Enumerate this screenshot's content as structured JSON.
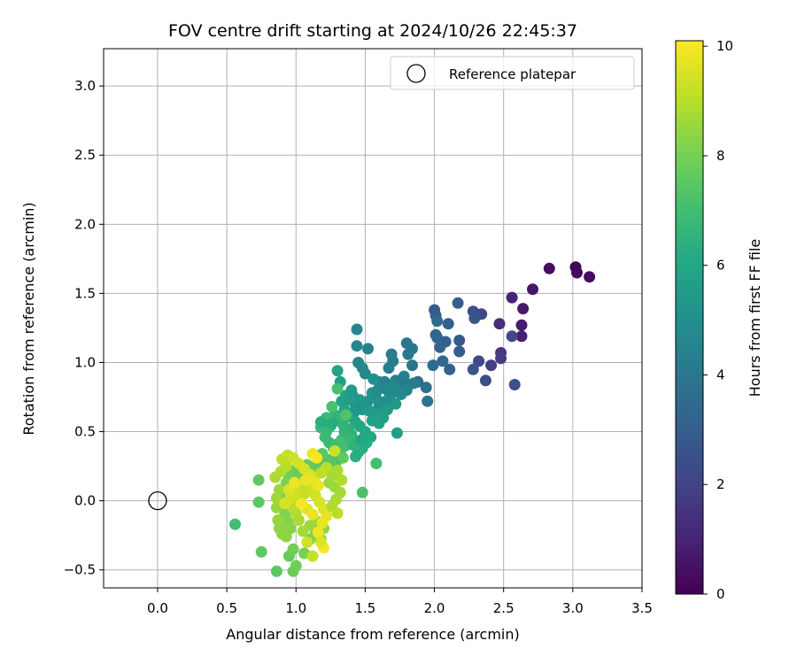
{
  "chart_data": {
    "type": "scatter",
    "title": "FOV centre drift starting at 2024/10/26 22:45:37",
    "xlabel": "Angular distance from reference (arcmin)",
    "ylabel": "Rotation from reference (arcmin)",
    "xlim": [
      -0.39,
      3.5
    ],
    "ylim": [
      -0.63,
      3.27
    ],
    "xticks": [
      0.0,
      0.5,
      1.0,
      1.5,
      2.0,
      2.5,
      3.0,
      3.5
    ],
    "yticks": [
      -0.5,
      0.0,
      0.5,
      1.0,
      1.5,
      2.0,
      2.5,
      3.0
    ],
    "xtick_labels": [
      "0.0",
      "0.5",
      "1.0",
      "1.5",
      "2.0",
      "2.5",
      "3.0",
      "3.5"
    ],
    "ytick_labels": [
      "−0.5",
      "0.0",
      "0.5",
      "1.0",
      "1.5",
      "2.0",
      "2.5",
      "3.0"
    ],
    "grid": true,
    "legend": {
      "position": "upper-right",
      "entries": [
        "Reference platepar"
      ]
    },
    "reference_point": {
      "x": 0.0,
      "y": 0.0,
      "label": "Reference platepar",
      "marker": "open-circle"
    },
    "colorbar": {
      "label": "Hours from first FF file",
      "range": [
        0,
        10.1
      ],
      "ticks": [
        0,
        2,
        4,
        6,
        8,
        10
      ],
      "tick_labels": [
        "0",
        "2",
        "4",
        "6",
        "8",
        "10"
      ],
      "colormap": "viridis"
    },
    "series": [
      {
        "points": [
          [
            3.02,
            1.69,
            0.1
          ],
          [
            3.03,
            1.65,
            0.2
          ],
          [
            3.12,
            1.62,
            0.3
          ],
          [
            2.83,
            1.68,
            0.4
          ],
          [
            2.71,
            1.53,
            0.6
          ],
          [
            2.64,
            1.39,
            0.7
          ],
          [
            2.63,
            1.27,
            0.8
          ],
          [
            2.63,
            1.19,
            0.9
          ],
          [
            2.56,
            1.47,
            1.0
          ],
          [
            2.47,
            1.28,
            1.3
          ],
          [
            2.56,
            1.19,
            2.2
          ],
          [
            2.48,
            1.07,
            1.6
          ],
          [
            2.48,
            1.03,
            1.8
          ],
          [
            2.41,
            0.98,
            1.9
          ],
          [
            2.58,
            0.84,
            2.5
          ],
          [
            2.37,
            0.87,
            2.4
          ],
          [
            2.32,
            1.01,
            2.3
          ],
          [
            2.28,
            0.95,
            2.6
          ],
          [
            2.28,
            1.37,
            2.5
          ],
          [
            2.34,
            1.35,
            2.3
          ],
          [
            2.29,
            1.32,
            2.7
          ],
          [
            2.18,
            1.16,
            2.8
          ],
          [
            2.18,
            1.08,
            2.9
          ],
          [
            2.17,
            1.43,
            3.0
          ],
          [
            2.1,
            1.28,
            3.1
          ],
          [
            2.08,
            1.15,
            3.1
          ],
          [
            2.11,
            0.95,
            3.2
          ],
          [
            2.04,
            1.11,
            3.2
          ],
          [
            2.02,
            1.18,
            3.3
          ],
          [
            2.01,
            1.2,
            3.3
          ],
          [
            2.0,
            1.38,
            2.8
          ],
          [
            2.01,
            1.34,
            3.0
          ],
          [
            2.06,
            1.01,
            3.4
          ],
          [
            1.99,
            0.98,
            3.5
          ],
          [
            2.02,
            1.3,
            3.5
          ],
          [
            1.88,
            0.86,
            3.6
          ],
          [
            1.94,
            0.82,
            3.7
          ],
          [
            1.95,
            0.72,
            3.8
          ],
          [
            1.84,
            0.98,
            3.9
          ],
          [
            1.8,
            1.14,
            3.9
          ],
          [
            1.84,
            1.1,
            4.0
          ],
          [
            1.79,
            0.85,
            4.0
          ],
          [
            1.81,
            1.06,
            4.1
          ],
          [
            1.75,
            0.82,
            4.1
          ],
          [
            1.69,
            1.06,
            4.2
          ],
          [
            1.7,
            1.01,
            4.2
          ],
          [
            1.67,
            0.96,
            4.3
          ],
          [
            1.72,
            0.87,
            4.3
          ],
          [
            1.64,
            0.86,
            4.4
          ],
          [
            1.62,
            0.83,
            4.4
          ],
          [
            1.6,
            0.86,
            4.5
          ],
          [
            1.52,
            1.1,
            4.4
          ],
          [
            1.44,
            1.24,
            4.5
          ],
          [
            1.44,
            1.12,
            4.6
          ],
          [
            1.45,
            1.0,
            4.6
          ],
          [
            1.48,
            0.96,
            4.7
          ],
          [
            1.5,
            0.92,
            4.7
          ],
          [
            1.7,
            0.83,
            4.8
          ],
          [
            1.74,
            0.79,
            4.8
          ],
          [
            1.68,
            0.75,
            4.9
          ],
          [
            1.65,
            0.72,
            4.9
          ],
          [
            1.62,
            0.7,
            5.0
          ],
          [
            1.6,
            0.68,
            5.0
          ],
          [
            1.58,
            0.74,
            5.1
          ],
          [
            1.55,
            0.78,
            5.1
          ],
          [
            1.52,
            0.72,
            5.2
          ],
          [
            1.5,
            0.7,
            5.2
          ],
          [
            1.48,
            0.66,
            5.3
          ],
          [
            1.45,
            0.68,
            5.3
          ],
          [
            1.42,
            0.64,
            5.4
          ],
          [
            1.72,
            0.7,
            5.4
          ],
          [
            1.66,
            0.66,
            5.5
          ],
          [
            1.63,
            0.64,
            5.5
          ],
          [
            1.73,
            0.49,
            5.6
          ],
          [
            1.4,
            0.8,
            5.6
          ],
          [
            1.36,
            0.76,
            5.7
          ],
          [
            1.32,
            0.86,
            5.7
          ],
          [
            1.3,
            0.94,
            5.8
          ],
          [
            1.33,
            0.72,
            5.8
          ],
          [
            1.35,
            0.66,
            5.9
          ],
          [
            1.38,
            0.61,
            5.9
          ],
          [
            1.43,
            0.57,
            6.0
          ],
          [
            1.46,
            0.54,
            6.0
          ],
          [
            1.5,
            0.5,
            6.1
          ],
          [
            1.54,
            0.46,
            6.1
          ],
          [
            1.51,
            0.42,
            6.2
          ],
          [
            1.48,
            0.38,
            6.2
          ],
          [
            1.45,
            0.35,
            6.3
          ],
          [
            1.43,
            0.32,
            6.3
          ],
          [
            1.4,
            0.48,
            6.4
          ],
          [
            1.38,
            0.52,
            6.4
          ],
          [
            1.34,
            0.55,
            6.5
          ],
          [
            1.31,
            0.58,
            6.5
          ],
          [
            1.28,
            0.62,
            6.6
          ],
          [
            1.25,
            0.54,
            6.6
          ],
          [
            1.22,
            0.5,
            6.7
          ],
          [
            1.18,
            0.53,
            6.7
          ],
          [
            1.21,
            0.46,
            6.8
          ],
          [
            1.24,
            0.42,
            6.8
          ],
          [
            1.27,
            0.38,
            6.9
          ],
          [
            1.3,
            0.41,
            6.9
          ],
          [
            1.33,
            0.44,
            7.0
          ],
          [
            1.36,
            0.4,
            7.0
          ],
          [
            1.32,
            0.35,
            7.1
          ],
          [
            1.28,
            0.32,
            7.1
          ],
          [
            1.58,
            0.27,
            7.0
          ],
          [
            1.48,
            0.06,
            7.2
          ],
          [
            1.26,
            0.68,
            7.2
          ],
          [
            1.3,
            0.81,
            7.1
          ],
          [
            1.36,
            0.62,
            7.3
          ],
          [
            1.29,
            0.28,
            7.3
          ],
          [
            1.25,
            0.25,
            7.4
          ],
          [
            1.22,
            0.3,
            7.4
          ],
          [
            1.19,
            0.34,
            7.5
          ],
          [
            1.16,
            0.28,
            7.5
          ],
          [
            1.14,
            0.24,
            7.6
          ],
          [
            1.11,
            0.2,
            7.6
          ],
          [
            1.08,
            0.26,
            7.7
          ],
          [
            1.05,
            0.22,
            7.7
          ],
          [
            1.02,
            0.17,
            7.8
          ],
          [
            0.98,
            0.22,
            7.8
          ],
          [
            0.95,
            0.18,
            7.9
          ],
          [
            0.93,
            0.13,
            8.0
          ],
          [
            0.91,
            0.08,
            8.0
          ],
          [
            0.89,
            0.03,
            8.1
          ],
          [
            0.9,
            -0.05,
            8.1
          ],
          [
            0.92,
            -0.1,
            8.2
          ],
          [
            0.94,
            -0.15,
            8.2
          ],
          [
            0.96,
            -0.2,
            8.3
          ],
          [
            0.93,
            -0.26,
            8.3
          ],
          [
            0.9,
            -0.24,
            8.4
          ],
          [
            0.88,
            -0.2,
            8.4
          ],
          [
            0.87,
            -0.14,
            8.5
          ],
          [
            0.86,
            -0.05,
            8.5
          ],
          [
            0.86,
            0.02,
            8.6
          ],
          [
            0.88,
            0.08,
            8.6
          ],
          [
            0.56,
            -0.17,
            7.0
          ],
          [
            0.73,
            -0.01,
            7.5
          ],
          [
            0.73,
            0.15,
            7.6
          ],
          [
            0.75,
            -0.37,
            7.6
          ],
          [
            0.86,
            -0.51,
            7.5
          ],
          [
            0.98,
            -0.51,
            7.8
          ],
          [
            1.0,
            -0.47,
            7.9
          ],
          [
            0.95,
            -0.4,
            7.7
          ],
          [
            0.98,
            -0.35,
            7.9
          ],
          [
            1.06,
            -0.38,
            8.0
          ],
          [
            1.1,
            -0.28,
            8.1
          ],
          [
            1.14,
            -0.24,
            8.2
          ],
          [
            1.18,
            -0.28,
            8.3
          ],
          [
            1.2,
            -0.2,
            8.4
          ],
          [
            1.15,
            -0.15,
            8.5
          ],
          [
            1.1,
            -0.18,
            8.6
          ],
          [
            1.05,
            -0.22,
            8.7
          ],
          [
            1.02,
            -0.14,
            8.8
          ],
          [
            1.0,
            -0.09,
            8.9
          ],
          [
            0.98,
            -0.04,
            9.0
          ],
          [
            1.02,
            0.01,
            9.1
          ],
          [
            1.06,
            0.05,
            9.2
          ],
          [
            1.1,
            0.09,
            9.3
          ],
          [
            1.14,
            0.04,
            9.4
          ],
          [
            1.17,
            -0.01,
            9.5
          ],
          [
            1.2,
            -0.06,
            9.6
          ],
          [
            1.22,
            -0.11,
            9.7
          ],
          [
            1.19,
            -0.16,
            9.8
          ],
          [
            1.16,
            -0.23,
            9.9
          ],
          [
            1.2,
            -0.34,
            10.0
          ],
          [
            1.18,
            -0.3,
            9.6
          ],
          [
            1.08,
            -0.3,
            9.4
          ],
          [
            1.12,
            -0.4,
            9.2
          ],
          [
            0.85,
            0.17,
            8.8
          ],
          [
            0.89,
            0.21,
            8.9
          ],
          [
            0.93,
            0.25,
            9.0
          ],
          [
            0.9,
            0.3,
            9.1
          ],
          [
            0.94,
            0.33,
            9.2
          ],
          [
            0.98,
            0.31,
            9.3
          ],
          [
            1.02,
            0.27,
            9.4
          ],
          [
            1.06,
            0.23,
            9.5
          ],
          [
            1.1,
            0.19,
            9.6
          ],
          [
            1.13,
            0.15,
            9.7
          ],
          [
            1.16,
            0.11,
            9.8
          ],
          [
            1.12,
            0.34,
            9.9
          ],
          [
            1.15,
            0.31,
            10.0
          ],
          [
            1.28,
            0.36,
            9.3
          ],
          [
            1.24,
            0.13,
            8.5
          ],
          [
            1.28,
            0.1,
            8.6
          ],
          [
            1.32,
            0.06,
            8.7
          ],
          [
            1.29,
            0.01,
            8.8
          ],
          [
            1.26,
            -0.04,
            8.9
          ],
          [
            1.3,
            -0.09,
            9.0
          ],
          [
            1.26,
            0.18,
            8.7
          ],
          [
            1.3,
            0.22,
            8.8
          ],
          [
            1.33,
            0.15,
            8.9
          ],
          [
            1.22,
            0.24,
            9.0
          ],
          [
            1.18,
            0.2,
            9.1
          ],
          [
            1.04,
            0.1,
            9.2
          ],
          [
            1.0,
            0.06,
            9.3
          ],
          [
            0.96,
            0.02,
            9.4
          ],
          [
            0.92,
            -0.02,
            9.5
          ],
          [
            0.95,
            0.08,
            9.6
          ],
          [
            1.08,
            -0.06,
            9.7
          ],
          [
            1.12,
            -0.1,
            9.8
          ],
          [
            1.04,
            -0.02,
            10.0
          ],
          [
            0.99,
            0.13,
            9.9
          ],
          [
            1.07,
            0.15,
            9.8
          ],
          [
            1.34,
            0.31,
            7.6
          ],
          [
            1.22,
            0.6,
            6.9
          ],
          [
            1.18,
            0.57,
            6.3
          ],
          [
            1.26,
            0.56,
            6.2
          ],
          [
            1.35,
            0.5,
            6.6
          ],
          [
            1.39,
            0.45,
            6.7
          ],
          [
            1.42,
            0.4,
            6.5
          ],
          [
            1.47,
            0.44,
            6.0
          ],
          [
            1.55,
            0.58,
            5.9
          ],
          [
            1.57,
            0.62,
            5.7
          ],
          [
            1.6,
            0.56,
            5.8
          ],
          [
            1.63,
            0.6,
            5.6
          ],
          [
            1.53,
            0.65,
            5.5
          ],
          [
            1.46,
            0.73,
            5.4
          ],
          [
            1.41,
            0.76,
            5.3
          ],
          [
            1.43,
            0.69,
            5.2
          ],
          [
            1.39,
            0.73,
            5.6
          ],
          [
            1.56,
            0.88,
            5.0
          ],
          [
            1.59,
            0.8,
            4.8
          ],
          [
            1.66,
            0.8,
            4.6
          ],
          [
            1.78,
            0.9,
            4.3
          ],
          [
            1.85,
            0.85,
            4.2
          ],
          [
            1.8,
            0.8,
            4.5
          ],
          [
            1.76,
            0.77,
            4.7
          ]
        ]
      }
    ]
  }
}
